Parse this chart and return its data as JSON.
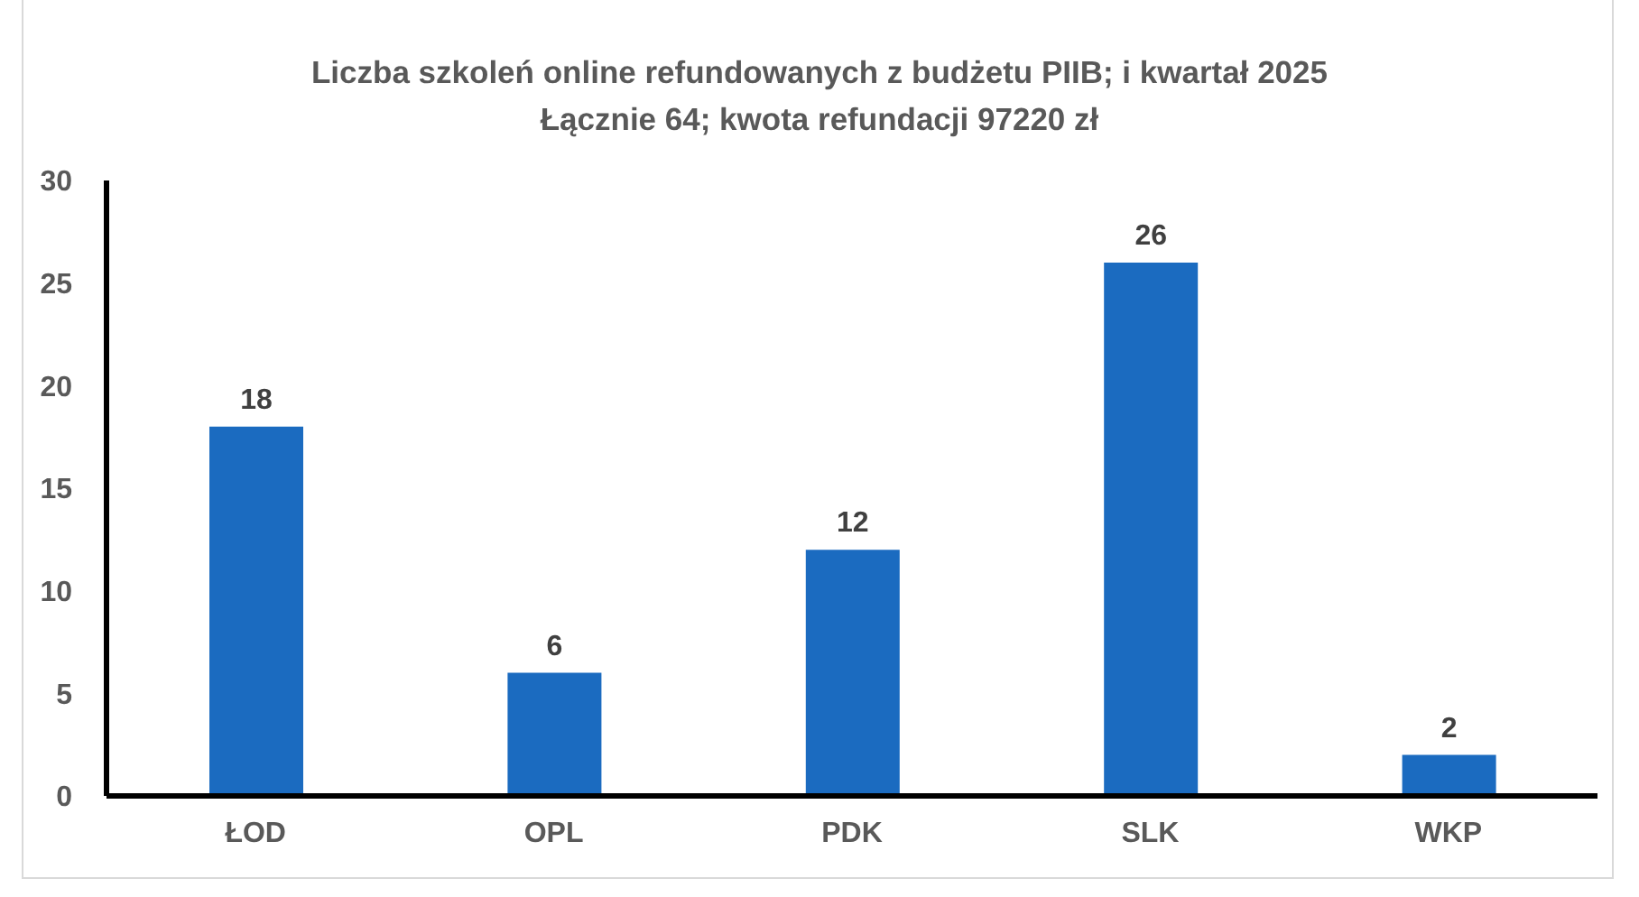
{
  "chart_data": {
    "type": "bar",
    "title": "Liczba szkoleń online refundowanych z budżetu PIIB; i kwartał 2025",
    "subtitle": "Łącznie 64; kwota refundacji 97220 zł",
    "categories": [
      "ŁOD",
      "OPL",
      "PDK",
      "SLK",
      "WKP"
    ],
    "values": [
      18,
      6,
      12,
      26,
      2
    ],
    "color": "#1b6bc0",
    "ylim": [
      0,
      30
    ],
    "yticks": [
      0,
      5,
      10,
      15,
      20,
      25,
      30
    ],
    "data_labels": true
  }
}
